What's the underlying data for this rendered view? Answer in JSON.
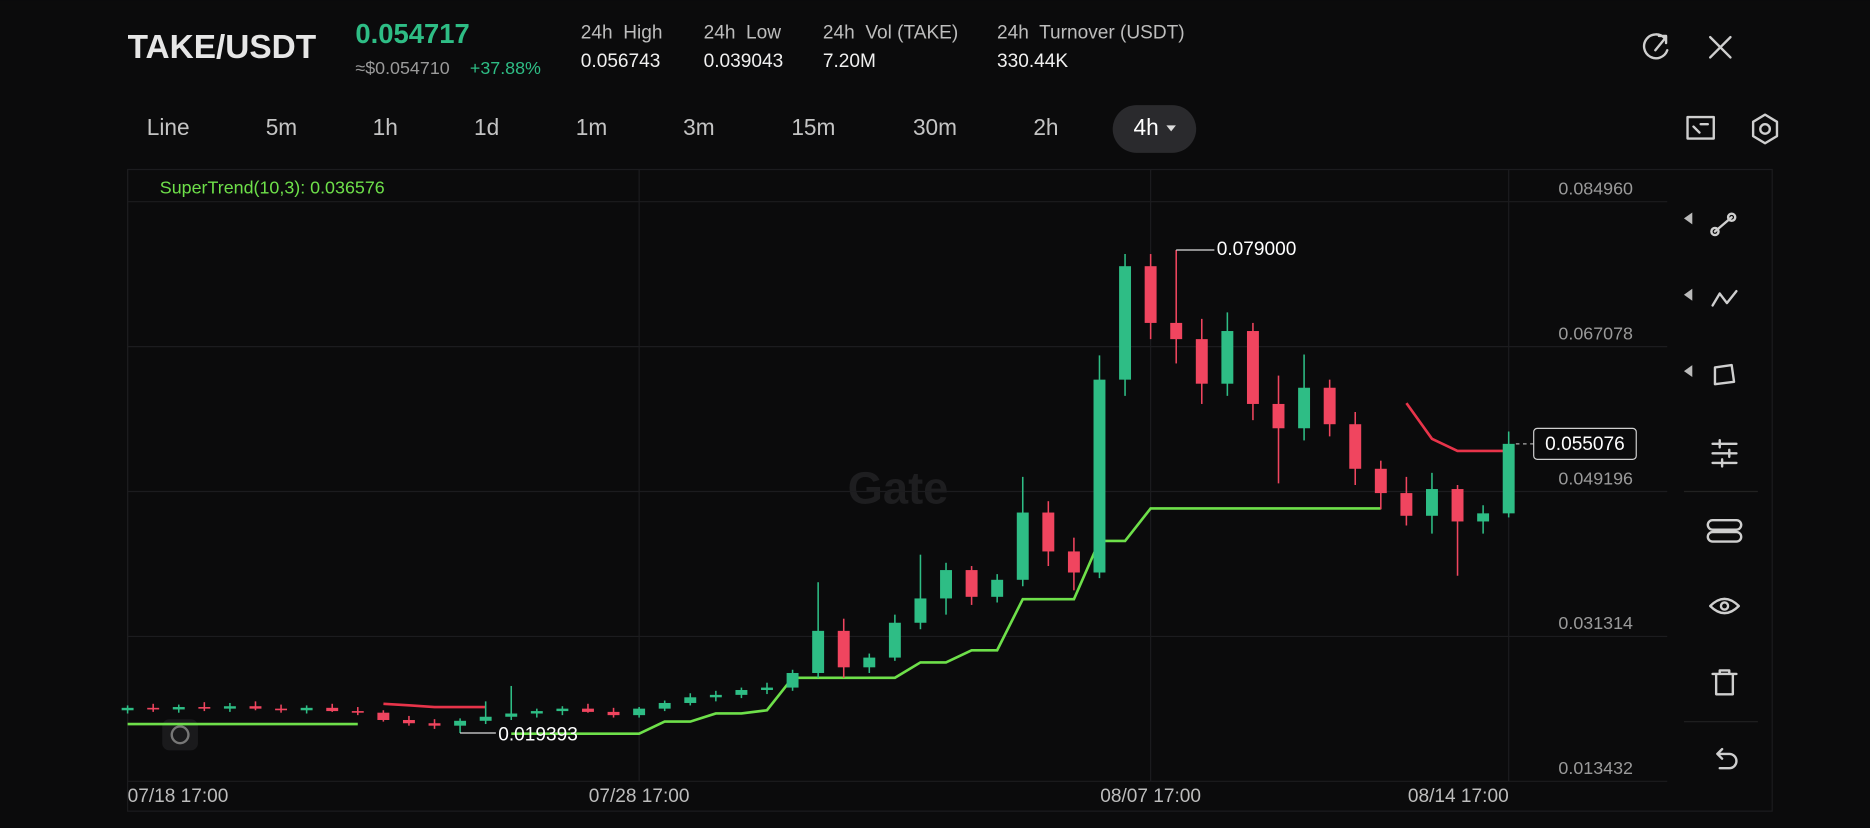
{
  "header": {
    "pair": "TAKE/USDT",
    "price": "0.054717",
    "fiat_price": "≈$0.054710",
    "change": "+37.88%",
    "stats": [
      {
        "label": "24h  High",
        "value": "0.056743"
      },
      {
        "label": "24h  Low",
        "value": "0.039043"
      },
      {
        "label": "24h  Vol (TAKE)",
        "value": "7.20M"
      },
      {
        "label": "24h  Turnover (USDT)",
        "value": "330.44K"
      }
    ]
  },
  "intervals": [
    "Line",
    "5m",
    "1h",
    "1d",
    "1m",
    "3m",
    "15m",
    "30m",
    "2h",
    "4h"
  ],
  "active_interval": "4h",
  "watermark": "Gate",
  "chart_data": {
    "type": "candlestick",
    "indicator_label": "SuperTrend(10,3): 0.036576",
    "up_color": "#2ebd85",
    "down_color": "#f0455f",
    "x": [
      0,
      1,
      2,
      3,
      4,
      5,
      6,
      7,
      8,
      9,
      10,
      11,
      12,
      13,
      14,
      15,
      16,
      17,
      18,
      19,
      20,
      21,
      22,
      23,
      24,
      25,
      26,
      27,
      28,
      29,
      30,
      31,
      32,
      33,
      34,
      35,
      36,
      37,
      38,
      39,
      40,
      41,
      42,
      43,
      44,
      45,
      46,
      47,
      48,
      49,
      50,
      51,
      52,
      53,
      54
    ],
    "open": [
      0.0222,
      0.0225,
      0.0223,
      0.0226,
      0.0224,
      0.0227,
      0.0224,
      0.0222,
      0.0225,
      0.0221,
      0.0219,
      0.021,
      0.0206,
      0.0203,
      0.0209,
      0.0214,
      0.0218,
      0.0221,
      0.0224,
      0.022,
      0.0216,
      0.0224,
      0.0231,
      0.0238,
      0.0241,
      0.0247,
      0.025,
      0.0268,
      0.032,
      0.0275,
      0.0287,
      0.033,
      0.036,
      0.0395,
      0.0362,
      0.0383,
      0.0466,
      0.0418,
      0.0392,
      0.063,
      0.077,
      0.07,
      0.068,
      0.0625,
      0.069,
      0.06,
      0.057,
      0.062,
      0.0575,
      0.052,
      0.049,
      0.0462,
      0.0495,
      0.0455,
      0.0465
    ],
    "high": [
      0.0228,
      0.023,
      0.0229,
      0.0232,
      0.0231,
      0.0233,
      0.0229,
      0.0228,
      0.023,
      0.0226,
      0.0222,
      0.0215,
      0.0211,
      0.0212,
      0.0233,
      0.0252,
      0.0224,
      0.0227,
      0.023,
      0.0225,
      0.0226,
      0.0234,
      0.0243,
      0.0246,
      0.025,
      0.0256,
      0.0272,
      0.038,
      0.0335,
      0.0292,
      0.034,
      0.0414,
      0.0404,
      0.04,
      0.039,
      0.051,
      0.048,
      0.0435,
      0.066,
      0.0785,
      0.0785,
      0.079,
      0.0705,
      0.0713,
      0.07,
      0.0635,
      0.0661,
      0.063,
      0.059,
      0.053,
      0.051,
      0.0515,
      0.05,
      0.0475,
      0.0566
    ],
    "low": [
      0.0218,
      0.022,
      0.0219,
      0.0221,
      0.022,
      0.0222,
      0.0219,
      0.0218,
      0.022,
      0.0216,
      0.0208,
      0.0203,
      0.0199,
      0.019393,
      0.0205,
      0.021,
      0.0213,
      0.0216,
      0.0219,
      0.0213,
      0.0213,
      0.0221,
      0.0228,
      0.0233,
      0.0237,
      0.0242,
      0.0246,
      0.0262,
      0.0262,
      0.0268,
      0.0283,
      0.0322,
      0.034,
      0.0352,
      0.0355,
      0.0375,
      0.04,
      0.037,
      0.0385,
      0.061,
      0.068,
      0.065,
      0.06,
      0.061,
      0.058,
      0.0502,
      0.0555,
      0.056,
      0.05,
      0.047,
      0.045,
      0.044,
      0.0388,
      0.044,
      0.046
    ],
    "close": [
      0.0225,
      0.0223,
      0.0226,
      0.0224,
      0.0227,
      0.0224,
      0.0222,
      0.0225,
      0.0221,
      0.0219,
      0.021,
      0.0206,
      0.0203,
      0.0209,
      0.0214,
      0.0218,
      0.0221,
      0.0224,
      0.022,
      0.0216,
      0.0224,
      0.0231,
      0.0238,
      0.0241,
      0.0247,
      0.025,
      0.0268,
      0.032,
      0.0275,
      0.0287,
      0.033,
      0.036,
      0.0395,
      0.0362,
      0.0383,
      0.0466,
      0.0418,
      0.0392,
      0.063,
      0.077,
      0.07,
      0.068,
      0.0625,
      0.069,
      0.06,
      0.057,
      0.062,
      0.0575,
      0.052,
      0.049,
      0.0462,
      0.0495,
      0.0455,
      0.0465,
      0.055076
    ],
    "supertrend": {
      "up_color": "#6ee04a",
      "down_color": "#e8344a",
      "up": [
        0.0205,
        0.0205,
        0.0205,
        0.0205,
        0.0205,
        0.0205,
        0.0205,
        0.0205,
        0.0205,
        0.0205,
        null,
        null,
        null,
        null,
        null,
        0.0193,
        0.0193,
        0.0193,
        0.0193,
        0.0193,
        0.0193,
        0.0208,
        0.0208,
        0.0218,
        0.0218,
        0.0222,
        0.0262,
        0.0262,
        0.0262,
        0.0262,
        0.0262,
        0.0281,
        0.0281,
        0.0296,
        0.0296,
        0.0359,
        0.0359,
        0.0359,
        0.0431,
        0.0431,
        0.0471,
        0.0471,
        0.0471,
        0.0471,
        0.0471,
        0.0471,
        0.0471,
        0.0471,
        0.0471,
        0.0471,
        null,
        null,
        null,
        null,
        null
      ],
      "down": [
        null,
        null,
        null,
        null,
        null,
        null,
        null,
        null,
        null,
        null,
        0.023,
        0.0228,
        0.0226,
        0.0226,
        0.0226,
        null,
        null,
        null,
        null,
        null,
        null,
        null,
        null,
        null,
        null,
        null,
        null,
        null,
        null,
        null,
        null,
        null,
        null,
        null,
        null,
        null,
        null,
        null,
        null,
        null,
        null,
        null,
        null,
        null,
        null,
        null,
        null,
        null,
        null,
        null,
        0.0601,
        0.0557,
        0.0542,
        0.0542,
        0.0542
      ]
    },
    "max_marker": {
      "value": 0.079,
      "label": "0.079000"
    },
    "min_marker": 0.019393,
    "last_price": 0.055076,
    "xlim": [
      0,
      60.2
    ],
    "ylim": [
      0.013432,
      0.08893
    ],
    "yticks": [
      {
        "value": 0.08496,
        "label": "0.084960"
      },
      0.067078,
      0.049196,
      0.031314,
      0.013432
    ],
    "xticks": [
      {
        "value": 0,
        "label": "07/18 17:00"
      },
      {
        "value": 20,
        "label": "07/28 17:00"
      },
      {
        "value": 40,
        "label": "08/07 17:00"
      },
      {
        "value": 54,
        "label": "08/14 17:00"
      }
    ],
    "grid": true
  }
}
